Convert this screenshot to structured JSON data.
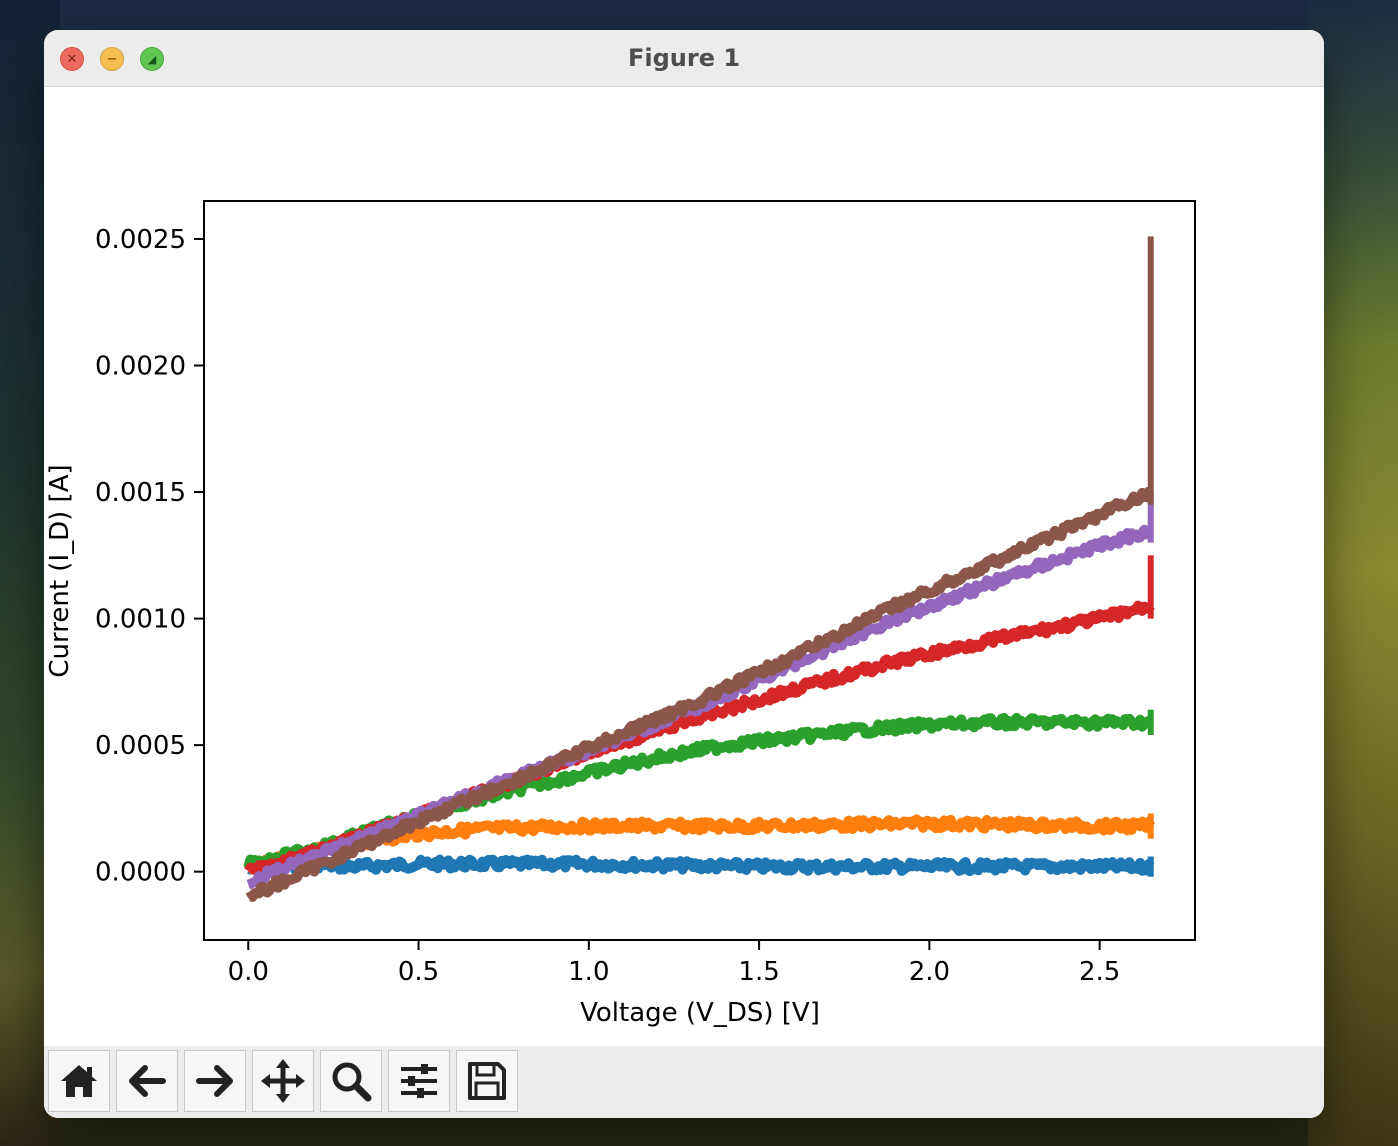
{
  "window": {
    "title": "Figure 1"
  },
  "titlebar": {
    "close_glyph": "✕",
    "minimize_glyph": "−",
    "zoom_glyph": "◢"
  },
  "toolbar": {
    "buttons": [
      {
        "name": "home-button",
        "icon": "home-icon"
      },
      {
        "name": "back-button",
        "icon": "arrow-left-icon"
      },
      {
        "name": "forward-button",
        "icon": "arrow-right-icon"
      },
      {
        "name": "pan-button",
        "icon": "move-icon"
      },
      {
        "name": "zoom-button",
        "icon": "search-icon"
      },
      {
        "name": "configure-subplots-button",
        "icon": "sliders-icon"
      },
      {
        "name": "save-button",
        "icon": "floppy-disk-icon"
      }
    ]
  },
  "chart_data": {
    "type": "line",
    "title": "",
    "xlabel": "Voltage (V_DS) [V]",
    "ylabel": "Current (I_D) [A]",
    "xlim": [
      -0.13,
      2.78
    ],
    "ylim": [
      -0.00027,
      0.00265
    ],
    "xticks": [
      0.0,
      0.5,
      1.0,
      1.5,
      2.0,
      2.5
    ],
    "xtick_labels": [
      "0.0",
      "0.5",
      "1.0",
      "1.5",
      "2.0",
      "2.5"
    ],
    "yticks": [
      0.0,
      0.0005,
      0.001,
      0.0015,
      0.002,
      0.0025
    ],
    "ytick_labels": [
      "0.0000",
      "0.0005",
      "0.0010",
      "0.0015",
      "0.0020",
      "0.0025"
    ],
    "grid": false,
    "legend": "none",
    "series": [
      {
        "color": "#1f77b4",
        "x": [
          0.0,
          0.1,
          0.2,
          0.3,
          0.5,
          1.0,
          1.5,
          2.0,
          2.5,
          2.65
        ],
        "y": [
          1e-05,
          2e-05,
          3e-05,
          2e-05,
          3e-05,
          3e-05,
          2e-05,
          2e-05,
          2e-05,
          2e-05
        ],
        "end_spike": [
          -2e-05,
          6e-05
        ]
      },
      {
        "color": "#ff7f0e",
        "x": [
          0.0,
          0.1,
          0.2,
          0.3,
          0.5,
          0.7,
          1.0,
          1.5,
          2.0,
          2.5,
          2.65
        ],
        "y": [
          2e-05,
          5e-05,
          8e-05,
          0.00011,
          0.00015,
          0.00017,
          0.00018,
          0.00018,
          0.00019,
          0.00018,
          0.00018
        ],
        "end_spike": [
          0.00013,
          0.00023
        ]
      },
      {
        "color": "#2ca02c",
        "x": [
          0.0,
          0.2,
          0.4,
          0.6,
          0.8,
          1.0,
          1.2,
          1.4,
          1.6,
          1.8,
          2.0,
          2.2,
          2.4,
          2.65
        ],
        "y": [
          3e-05,
          9e-05,
          0.00018,
          0.00026,
          0.00033,
          0.00039,
          0.00045,
          0.0005,
          0.00053,
          0.00056,
          0.00058,
          0.00059,
          0.00059,
          0.00059
        ],
        "end_spike": [
          0.00054,
          0.00064
        ]
      },
      {
        "color": "#d62728",
        "x": [
          0.0,
          0.2,
          0.5,
          0.8,
          1.0,
          1.3,
          1.6,
          1.9,
          2.2,
          2.5,
          2.65
        ],
        "y": [
          0.0,
          8e-05,
          0.00022,
          0.00037,
          0.00047,
          0.0006,
          0.00072,
          0.00083,
          0.00092,
          0.001,
          0.00105
        ],
        "end_spike": [
          0.001,
          0.00125
        ]
      },
      {
        "color": "#9467bd",
        "x": [
          0.0,
          0.2,
          0.5,
          0.8,
          1.0,
          1.3,
          1.6,
          1.9,
          2.2,
          2.5,
          2.65
        ],
        "y": [
          -4e-05,
          6e-05,
          0.00022,
          0.00038,
          0.00048,
          0.00064,
          0.00082,
          0.001,
          0.00115,
          0.00129,
          0.00135
        ],
        "end_spike": [
          0.0013,
          0.0015
        ]
      },
      {
        "color": "#8c564b",
        "x": [
          0.0,
          0.2,
          0.5,
          0.8,
          1.0,
          1.3,
          1.6,
          1.9,
          2.2,
          2.5,
          2.65
        ],
        "y": [
          -0.0001,
          2e-05,
          0.0002,
          0.00037,
          0.00049,
          0.00066,
          0.00085,
          0.00105,
          0.00123,
          0.00141,
          0.0015
        ],
        "end_spike": [
          0.00145,
          0.00251
        ]
      }
    ]
  }
}
